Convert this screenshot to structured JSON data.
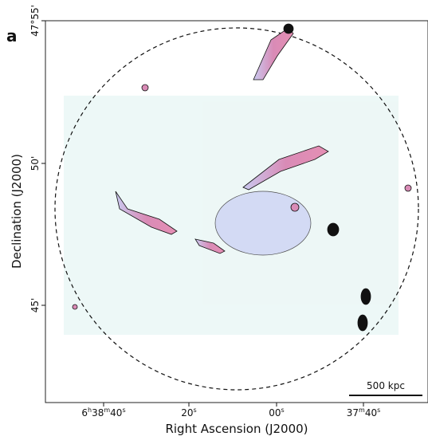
{
  "panel_label": "a",
  "x_axis": {
    "label": "Right Ascension (J2000)",
    "ticks": [
      [
        "6",
        "h",
        "38",
        "m",
        "40",
        "s"
      ],
      [
        "20",
        "s"
      ],
      [
        "00",
        "s"
      ],
      [
        "37",
        "m",
        "40",
        "s"
      ]
    ]
  },
  "y_axis": {
    "label": "Declination (J2000)",
    "ticks": [
      "47°55'",
      "50'",
      "45'"
    ]
  },
  "scale_bar": "500 kpc"
}
